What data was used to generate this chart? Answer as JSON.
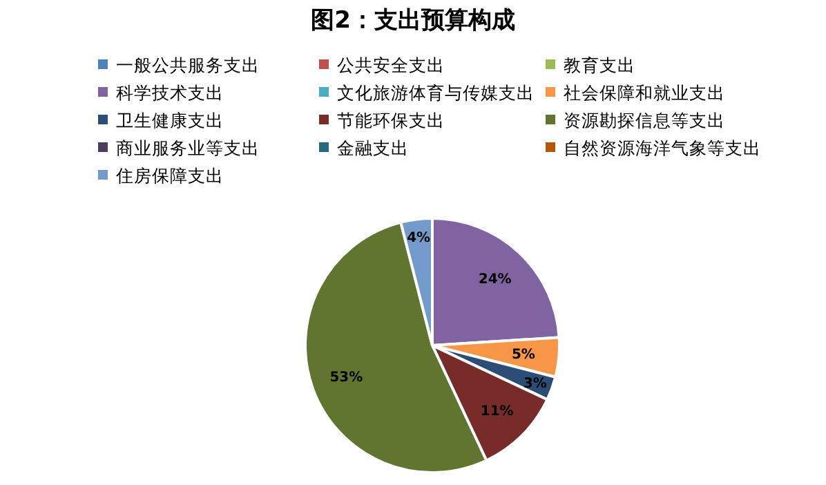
{
  "chart_data": {
    "type": "pie",
    "title": "图2：支出预算构成",
    "categories": [
      "一般公共服务支出",
      "公共安全支出",
      "教育支出",
      "科学技术支出",
      "文化旅游体育与传媒支出",
      "社会保障和就业支出",
      "卫生健康支出",
      "节能环保支出",
      "资源勘探信息等支出",
      "商业服务业等支出",
      "金融支出",
      "自然资源海洋气象等支出",
      "住房保障支出"
    ],
    "values": [
      0,
      0,
      0,
      24,
      0,
      5,
      3,
      11,
      53,
      0,
      0,
      0,
      4
    ],
    "value_labels": [
      null,
      null,
      null,
      "24%",
      null,
      "5%",
      "3%",
      "11%",
      "53%",
      null,
      null,
      null,
      "4%"
    ],
    "colors": [
      "#4f81bd",
      "#c0504d",
      "#9bbb59",
      "#8064a2",
      "#4bacc6",
      "#f79646",
      "#2c4d75",
      "#772c2a",
      "#5f7530",
      "#4d3b62",
      "#276a7c",
      "#b65708",
      "#729aca"
    ],
    "legend": "top"
  }
}
